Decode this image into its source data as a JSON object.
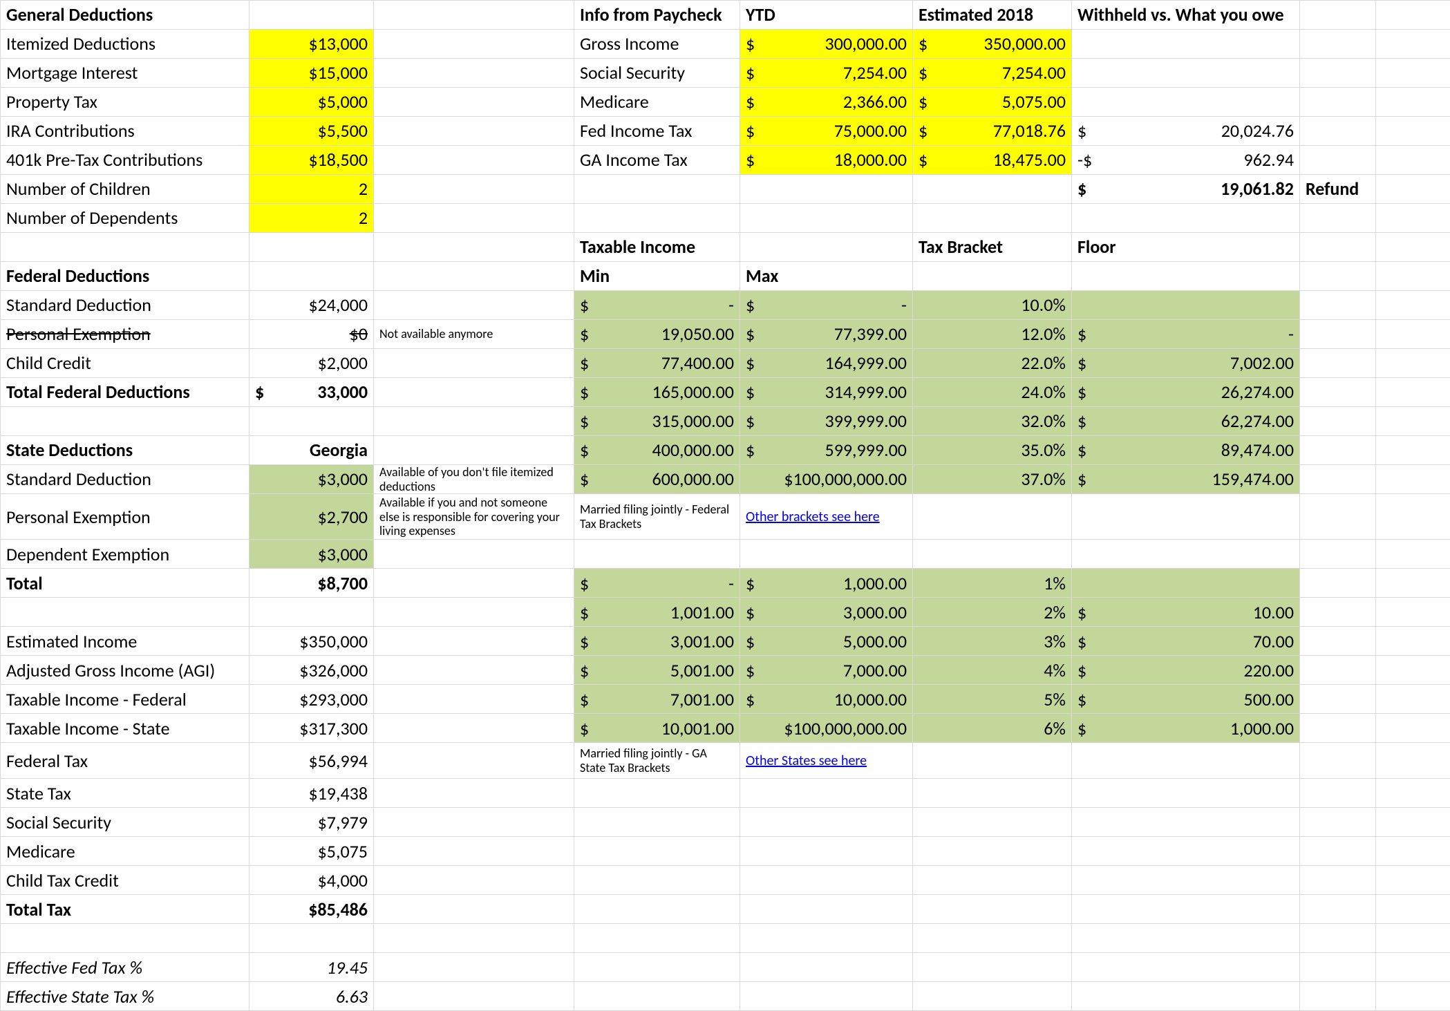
{
  "colors": {
    "highlight_yellow": "#ffff00",
    "highlight_green": "#c4d79b",
    "grid": "#d9d9d9",
    "link": "#0000ee"
  },
  "left": {
    "general_deductions": {
      "title": "General Deductions",
      "itemized": {
        "label": "Itemized Deductions",
        "value": "$13,000"
      },
      "mortgage": {
        "label": "Mortgage Interest",
        "value": "$15,000"
      },
      "property": {
        "label": "Property Tax",
        "value": "$5,000"
      },
      "ira": {
        "label": "IRA Contributions",
        "value": "$5,500"
      },
      "k401": {
        "label": "401k Pre-Tax Contributions",
        "value": "$18,500"
      },
      "children": {
        "label": "Number of Children",
        "value": "2"
      },
      "dependents": {
        "label": "Number of Dependents",
        "value": "2"
      }
    },
    "federal": {
      "title": "Federal Deductions",
      "std": {
        "label": "Standard Deduction",
        "value": "$24,000"
      },
      "personal": {
        "label": "Personal Exemption",
        "value": "$0",
        "note": "Not available anymore"
      },
      "child": {
        "label": "Child Credit",
        "value": "$2,000"
      },
      "total": {
        "label": "Total Federal Deductions",
        "sym": "$",
        "value": "33,000"
      }
    },
    "state": {
      "title": "State Deductions",
      "name": "Georgia",
      "std": {
        "label": "Standard Deduction",
        "value": "$3,000",
        "note": "Available of you don't file itemized deductions"
      },
      "personal": {
        "label": "Personal Exemption",
        "value": "$2,700",
        "note": "Available if you and not someone else is responsible for covering your living expenses"
      },
      "dependent": {
        "label": "Dependent Exemption",
        "value": "$3,000"
      },
      "total": {
        "label": "Total",
        "value": "$8,700"
      }
    },
    "summary": {
      "est_income": {
        "label": "Estimated Income",
        "value": "$350,000"
      },
      "agi": {
        "label": "Adjusted Gross Income (AGI)",
        "value": "$326,000"
      },
      "ti_fed": {
        "label": "Taxable Income - Federal",
        "value": "$293,000"
      },
      "ti_state": {
        "label": "Taxable Income - State",
        "value": "$317,300"
      },
      "fed_tax": {
        "label": "Federal Tax",
        "value": "$56,994"
      },
      "state_tax": {
        "label": "State Tax",
        "value": "$19,438"
      },
      "ss": {
        "label": "Social Security",
        "value": "$7,979"
      },
      "medicare": {
        "label": "Medicare",
        "value": "$5,075"
      },
      "ctc": {
        "label": "Child Tax Credit",
        "value": "$4,000"
      },
      "total": {
        "label": "Total Tax",
        "value": "$85,486"
      },
      "eff_fed": {
        "label": "Effective Fed Tax %",
        "value": "19.45"
      },
      "eff_state": {
        "label": "Effective State Tax %",
        "value": "6.63"
      }
    }
  },
  "right": {
    "paycheck": {
      "title": "Info from Paycheck",
      "ytd": "YTD",
      "est": "Estimated 2018",
      "wh": "Withheld vs. What you owe",
      "rows": [
        {
          "label": "Gross Income",
          "ytd": "300,000.00",
          "est": "350,000.00"
        },
        {
          "label": "Social Security",
          "ytd": "7,254.00",
          "est": "7,254.00"
        },
        {
          "label": "Medicare",
          "ytd": "2,366.00",
          "est": "5,075.00"
        },
        {
          "label": "Fed Income Tax",
          "ytd": "75,000.00",
          "est": "77,018.76",
          "wh_sym": "$",
          "wh": "20,024.76"
        },
        {
          "label": "GA Income Tax",
          "ytd": "18,000.00",
          "est": "18,475.00",
          "wh_sym": "-$",
          "wh": "962.94"
        }
      ],
      "refund": {
        "sym": "$",
        "value": "19,061.82",
        "label": "Refund"
      }
    },
    "taxable": {
      "title": "Taxable Income",
      "bracket": "Tax Bracket",
      "floor": "Floor",
      "min": "Min",
      "max": "Max"
    },
    "fed_brackets": {
      "rows": [
        {
          "min": "-",
          "max": "-",
          "rate": "10.0%"
        },
        {
          "min": "19,050.00",
          "max": "77,399.00",
          "rate": "12.0%",
          "floor": "-"
        },
        {
          "min": "77,400.00",
          "max": "164,999.00",
          "rate": "22.0%",
          "floor": "7,002.00"
        },
        {
          "min": "165,000.00",
          "max": "314,999.00",
          "rate": "24.0%",
          "floor": "26,274.00"
        },
        {
          "min": "315,000.00",
          "max": "399,999.00",
          "rate": "32.0%",
          "floor": "62,274.00"
        },
        {
          "min": "400,000.00",
          "max": "599,999.00",
          "rate": "35.0%",
          "floor": "89,474.00"
        },
        {
          "min": "600,000.00",
          "maxraw": "$100,000,000.00",
          "rate": "37.0%",
          "floor": "159,474.00"
        }
      ],
      "note": "Married filing jointly - Federal Tax Brackets",
      "link": "Other brackets see here"
    },
    "state_brackets": {
      "rows": [
        {
          "min": "-",
          "max": "1,000.00",
          "rate": "1%"
        },
        {
          "min": "1,001.00",
          "max": "3,000.00",
          "rate": "2%",
          "floor": "10.00"
        },
        {
          "min": "3,001.00",
          "max": "5,000.00",
          "rate": "3%",
          "floor": "70.00"
        },
        {
          "min": "5,001.00",
          "max": "7,000.00",
          "rate": "4%",
          "floor": "220.00"
        },
        {
          "min": "7,001.00",
          "max": "10,000.00",
          "rate": "5%",
          "floor": "500.00"
        },
        {
          "min": "10,001.00",
          "maxraw": "$100,000,000.00",
          "rate": "6%",
          "floor": "1,000.00"
        }
      ],
      "note": "Married filing jointly - GA State Tax Brackets",
      "link": "Other States see here"
    }
  }
}
